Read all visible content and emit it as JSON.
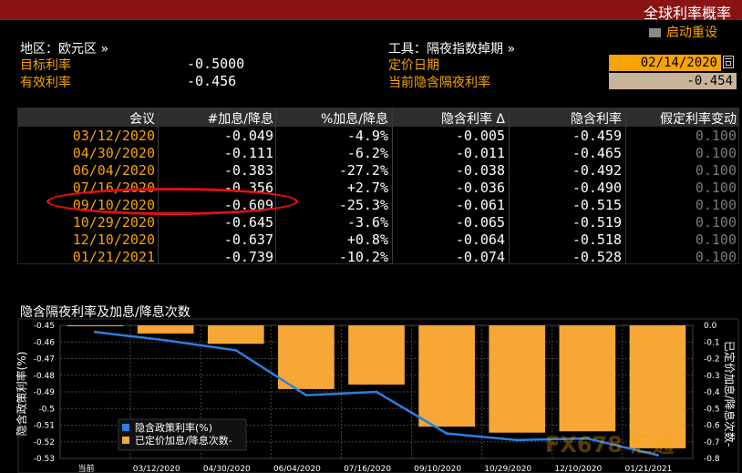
{
  "window": {
    "title": "全球利率概率"
  },
  "toolbar": {
    "restart_label": "启动重设"
  },
  "params": {
    "region_label": "地区：欧元区 »",
    "tool_label": "工具：隔夜指数掉期 »",
    "target_rate_label": "目标利率",
    "target_rate_value": "-0.5000",
    "effective_rate_label": "有效利率",
    "effective_rate_value": "-0.456",
    "pricing_date_label": "定价日期",
    "pricing_date_value": "02/14/2020",
    "current_implied_label": "当前隐含隔夜利率",
    "current_implied_value": "-0.454"
  },
  "table": {
    "headers": [
      "会议",
      "#加息/降息",
      "%加息/降息",
      "隐含利率 Δ",
      "隐含利率",
      "假定利率变动"
    ],
    "rows": [
      [
        "03/12/2020",
        "-0.049",
        "-4.9%",
        "-0.005",
        "-0.459",
        "0.100"
      ],
      [
        "04/30/2020",
        "-0.111",
        "-6.2%",
        "-0.011",
        "-0.465",
        "0.100"
      ],
      [
        "06/04/2020",
        "-0.383",
        "-27.2%",
        "-0.038",
        "-0.492",
        "0.100"
      ],
      [
        "07/16/2020",
        "-0.356",
        "+2.7%",
        "-0.036",
        "-0.490",
        "0.100"
      ],
      [
        "09/10/2020",
        "-0.609",
        "-25.3%",
        "-0.061",
        "-0.515",
        "0.100"
      ],
      [
        "10/29/2020",
        "-0.645",
        "-3.6%",
        "-0.065",
        "-0.519",
        "0.100"
      ],
      [
        "12/10/2020",
        "-0.637",
        "+0.8%",
        "-0.064",
        "-0.518",
        "0.100"
      ],
      [
        "01/21/2021",
        "-0.739",
        "-10.2%",
        "-0.074",
        "-0.528",
        "0.100"
      ]
    ]
  },
  "colors": {
    "accent": "#f7a300",
    "title_bar": "#8a1414",
    "highlight": "#e01010",
    "line": "#2a7fe0",
    "bar": "#f7a735"
  },
  "chart_data": {
    "type": "bar",
    "title": "隐含隔夜利率及加息/降息次数",
    "categories": [
      "当前",
      "03/12/2020",
      "04/30/2020",
      "06/04/2020",
      "07/16/2020",
      "09/10/2020",
      "10/29/2020",
      "12/10/2020",
      "01/21/2021"
    ],
    "series": [
      {
        "name": "隐含政策利率(%)",
        "type": "line",
        "axis": "left",
        "values": [
          -0.454,
          -0.459,
          -0.465,
          -0.492,
          -0.49,
          -0.515,
          -0.519,
          -0.518,
          -0.528
        ]
      },
      {
        "name": "已定价加息/降息次数-",
        "type": "bar",
        "axis": "right",
        "values": [
          0,
          -0.049,
          -0.111,
          -0.383,
          -0.356,
          -0.609,
          -0.645,
          -0.637,
          -0.739
        ]
      }
    ],
    "ylabel": "隐含政策利率(%)",
    "y2label": "已定价加息/降息次数-",
    "ylim": [
      -0.53,
      -0.45
    ],
    "y2lim": [
      -0.8,
      0.0
    ],
    "yticks": [
      "-0.45",
      "-0.46",
      "-0.47",
      "-0.48",
      "-0.49",
      "-0.5",
      "-0.51",
      "-0.52",
      "-0.53"
    ],
    "y2ticks": [
      "0.0",
      "-0.1",
      "-0.2",
      "-0.3",
      "-0.4",
      "-0.5",
      "-0.6",
      "-0.7",
      "-0.8"
    ],
    "grid": true,
    "legend": "bottom-left"
  },
  "watermark": {
    "text": "FX678 汇通"
  }
}
